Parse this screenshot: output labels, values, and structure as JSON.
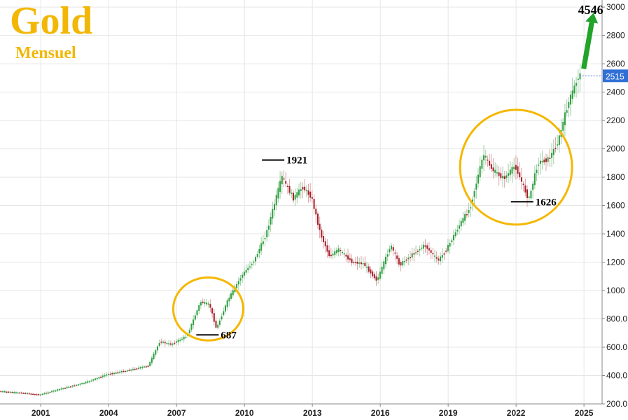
{
  "title": "Gold",
  "subtitle": "Mensuel",
  "colors": {
    "title": "#f2b705",
    "up": "#2e9e3e",
    "down": "#a3202a",
    "circle": "#f5b700",
    "arrow": "#22a32a",
    "price_tag": "#2f6fd6"
  },
  "chart_data": {
    "type": "candlestick",
    "title": "Gold",
    "subtitle": "Mensuel",
    "x_ticks": [
      "2001",
      "2004",
      "2007",
      "2010",
      "2013",
      "2016",
      "2019",
      "2022",
      "2025"
    ],
    "y_ticks": [
      "200.0",
      "400.0",
      "600.0",
      "800.0",
      "1000",
      "1200",
      "1400",
      "1600",
      "1800",
      "2000",
      "2200",
      "2400",
      "2600",
      "2800",
      "3000"
    ],
    "ylim": [
      200,
      3050
    ],
    "xlim": [
      1999.2,
      2025.8
    ],
    "current_price_label": "2515",
    "target_label": "4546",
    "annotations": [
      {
        "label": "1921",
        "x": 2011.7,
        "y": 1921
      },
      {
        "label": "687",
        "x": 2008.8,
        "y": 687
      },
      {
        "label": "1626",
        "x": 2022.7,
        "y": 1626
      }
    ],
    "circles": [
      {
        "center_x": 2008.4,
        "center_y": 870
      },
      {
        "center_x": 2022.0,
        "center_y": 1870
      }
    ],
    "series_points": [
      [
        1999.2,
        290
      ],
      [
        2000.0,
        280
      ],
      [
        2001.0,
        265
      ],
      [
        2002.0,
        310
      ],
      [
        2003.0,
        350
      ],
      [
        2004.0,
        410
      ],
      [
        2005.0,
        440
      ],
      [
        2005.8,
        470
      ],
      [
        2006.3,
        640
      ],
      [
        2006.8,
        620
      ],
      [
        2007.5,
        680
      ],
      [
        2008.1,
        920
      ],
      [
        2008.5,
        900
      ],
      [
        2008.8,
        730
      ],
      [
        2009.3,
        930
      ],
      [
        2009.9,
        1100
      ],
      [
        2010.5,
        1220
      ],
      [
        2011.0,
        1400
      ],
      [
        2011.6,
        1750
      ],
      [
        2011.7,
        1800
      ],
      [
        2012.2,
        1650
      ],
      [
        2012.6,
        1730
      ],
      [
        2013.0,
        1660
      ],
      [
        2013.4,
        1400
      ],
      [
        2013.8,
        1240
      ],
      [
        2014.2,
        1290
      ],
      [
        2014.8,
        1200
      ],
      [
        2015.3,
        1190
      ],
      [
        2015.9,
        1070
      ],
      [
        2016.5,
        1320
      ],
      [
        2016.9,
        1180
      ],
      [
        2017.5,
        1260
      ],
      [
        2018.0,
        1320
      ],
      [
        2018.6,
        1210
      ],
      [
        2019.0,
        1300
      ],
      [
        2019.6,
        1480
      ],
      [
        2020.0,
        1580
      ],
      [
        2020.6,
        1960
      ],
      [
        2021.0,
        1850
      ],
      [
        2021.5,
        1790
      ],
      [
        2022.0,
        1880
      ],
      [
        2022.6,
        1640
      ],
      [
        2023.0,
        1900
      ],
      [
        2023.5,
        1930
      ],
      [
        2023.9,
        2050
      ],
      [
        2024.3,
        2300
      ],
      [
        2024.8,
        2515
      ]
    ]
  }
}
